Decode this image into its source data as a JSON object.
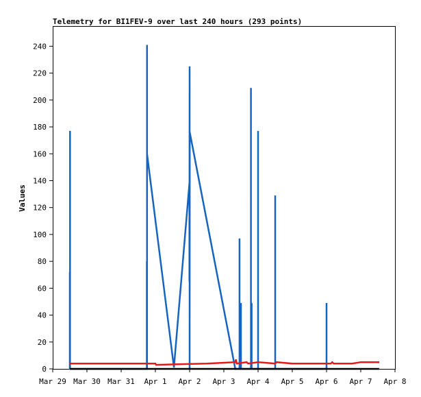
{
  "chart_data": {
    "type": "line",
    "title": "Telemetry for BI1FEV-9 over last 240 hours (293 points)",
    "ylabel": "Values",
    "xlabel": "",
    "ylim": [
      0,
      255
    ],
    "xlim": [
      "2020-03-29 00:00",
      "2020-04-08 00:00"
    ],
    "x_tick_labels": [
      "Mar 29",
      "Mar 30",
      "Mar 31",
      "Apr 1",
      "Apr 2",
      "Apr 3",
      "Apr 4",
      "Apr 5",
      "Apr 6",
      "Apr 7",
      "Apr 8"
    ],
    "y_ticks": [
      0,
      20,
      40,
      60,
      80,
      100,
      120,
      140,
      160,
      180,
      200,
      220,
      240
    ],
    "grid": false,
    "colors": {
      "blue": "#1565c0",
      "red": "#e31a1c",
      "black": "#000000"
    },
    "series": [
      {
        "color": "#1565c0",
        "points": [
          [
            "2020-03-29 12:00",
            0
          ],
          [
            "2020-03-29 12:00",
            72
          ],
          [
            "2020-03-29 12:00",
            0
          ],
          [
            "2020-03-29 12:10",
            0
          ],
          [
            "2020-03-29 12:10",
            177
          ],
          [
            "2020-03-29 12:10",
            0
          ],
          [
            "2020-03-31 18:00",
            0
          ],
          [
            "2020-03-31 18:00",
            80
          ],
          [
            "2020-03-31 18:00",
            0
          ],
          [
            "2020-03-31 18:10",
            0
          ],
          [
            "2020-03-31 18:10",
            241
          ],
          [
            "2020-03-31 18:10",
            160
          ],
          [
            "2020-04-01 13:00",
            1
          ],
          [
            "2020-04-01 23:50",
            138
          ],
          [
            "2020-04-01 23:50",
            65
          ],
          [
            "2020-04-02 00:00",
            225
          ],
          [
            "2020-04-02 00:00",
            0
          ],
          [
            "2020-04-02 00:05",
            176
          ],
          [
            "2020-04-03 08:00",
            0
          ],
          [
            "2020-04-03 11:00",
            0
          ],
          [
            "2020-04-03 11:00",
            97
          ],
          [
            "2020-04-03 11:00",
            0
          ],
          [
            "2020-04-03 12:00",
            0
          ],
          [
            "2020-04-03 12:00",
            49
          ],
          [
            "2020-04-03 12:00",
            0
          ],
          [
            "2020-04-03 19:00",
            0
          ],
          [
            "2020-04-03 19:00",
            209
          ],
          [
            "2020-04-03 19:00",
            0
          ],
          [
            "2020-04-03 19:30",
            0
          ],
          [
            "2020-04-03 19:30",
            49
          ],
          [
            "2020-04-03 19:30",
            0
          ],
          [
            "2020-04-04 00:00",
            0
          ],
          [
            "2020-04-04 00:00",
            177
          ],
          [
            "2020-04-04 00:00",
            0
          ],
          [
            "2020-04-04 12:00",
            0
          ],
          [
            "2020-04-04 12:00",
            129
          ],
          [
            "2020-04-04 12:00",
            0
          ],
          [
            "2020-04-06 00:00",
            0
          ],
          [
            "2020-04-06 00:00",
            49
          ],
          [
            "2020-04-06 00:00",
            0
          ]
        ]
      },
      {
        "color": "#e31a1c",
        "points": [
          [
            "2020-03-29 12:00",
            4
          ],
          [
            "2020-04-01 00:00",
            4
          ],
          [
            "2020-04-01 00:30",
            3
          ],
          [
            "2020-04-02 12:00",
            4
          ],
          [
            "2020-04-03 08:00",
            5
          ],
          [
            "2020-04-03 08:30",
            7
          ],
          [
            "2020-04-03 09:00",
            4
          ],
          [
            "2020-04-03 16:00",
            5
          ],
          [
            "2020-04-03 17:00",
            4
          ],
          [
            "2020-04-04 00:00",
            5
          ],
          [
            "2020-04-04 12:00",
            4
          ],
          [
            "2020-04-04 13:00",
            5
          ],
          [
            "2020-04-05 00:00",
            4
          ],
          [
            "2020-04-06 03:00",
            4
          ],
          [
            "2020-04-06 04:00",
            5
          ],
          [
            "2020-04-06 05:00",
            4
          ],
          [
            "2020-04-06 18:00",
            4
          ],
          [
            "2020-04-07 00:00",
            5
          ],
          [
            "2020-04-07 13:00",
            5
          ]
        ]
      },
      {
        "color": "#000000",
        "points": [
          [
            "2020-03-29 12:00",
            0
          ],
          [
            "2020-04-07 13:00",
            0
          ]
        ]
      }
    ]
  }
}
